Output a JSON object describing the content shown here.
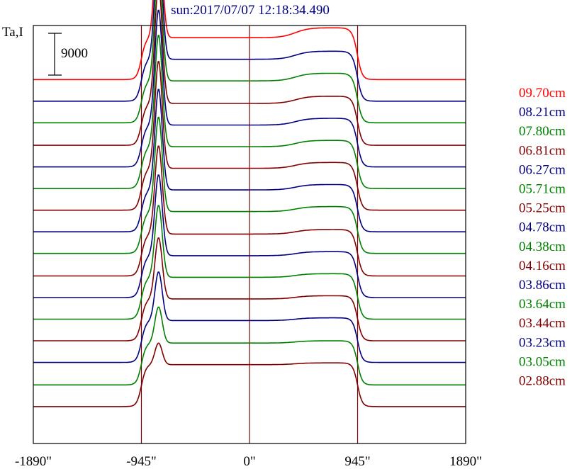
{
  "colors": {
    "red": "#ff0000",
    "blue": "#000080",
    "green": "#008000",
    "maroon": "#800000",
    "frame": "#000000",
    "title": "#000080"
  },
  "chart_data": {
    "type": "line",
    "title": "sun:2017/07/07 12:18:34.490",
    "ylabel": "Ta,I",
    "scale_bar_label": "9000",
    "scale_bar_value": 9000,
    "xlim": [
      -1890,
      1890
    ],
    "x_ticks": [
      -1890,
      -945,
      0,
      945,
      1890
    ],
    "x_tick_labels": [
      "-1890\"",
      "-945\"",
      "0\"",
      "945\"",
      "1890\""
    ],
    "x_unit": "arcsec",
    "vertical_markers": [
      -945,
      0,
      945
    ],
    "ylim": [
      -1900,
      44500
    ],
    "series": [
      {
        "name": "09.70cm",
        "color": "red",
        "baseline": 38500,
        "disk": 4650,
        "peak": 13500,
        "bright": 1100
      },
      {
        "name": "08.21cm",
        "color": "blue",
        "baseline": 36100,
        "disk": 4650,
        "peak": 13500,
        "bright": 900
      },
      {
        "name": "07.80cm",
        "color": "green",
        "baseline": 33700,
        "disk": 4650,
        "peak": 13300,
        "bright": 850
      },
      {
        "name": "06.81cm",
        "color": "maroon",
        "baseline": 31200,
        "disk": 4650,
        "peak": 13200,
        "bright": 800
      },
      {
        "name": "06.27cm",
        "color": "blue",
        "baseline": 28800,
        "disk": 4650,
        "peak": 12800,
        "bright": 750
      },
      {
        "name": "05.71cm",
        "color": "green",
        "baseline": 26400,
        "disk": 4650,
        "peak": 12400,
        "bright": 700
      },
      {
        "name": "05.25cm",
        "color": "maroon",
        "baseline": 24000,
        "disk": 4650,
        "peak": 11900,
        "bright": 650
      },
      {
        "name": "04.78cm",
        "color": "blue",
        "baseline": 21600,
        "disk": 4650,
        "peak": 11200,
        "bright": 600
      },
      {
        "name": "04.38cm",
        "color": "green",
        "baseline": 19200,
        "disk": 4650,
        "peak": 10500,
        "bright": 550
      },
      {
        "name": "04.16cm",
        "color": "maroon",
        "baseline": 16700,
        "disk": 4650,
        "peak": 9800,
        "bright": 500
      },
      {
        "name": "03.86cm",
        "color": "blue",
        "baseline": 14300,
        "disk": 4650,
        "peak": 9000,
        "bright": 450
      },
      {
        "name": "03.64cm",
        "color": "green",
        "baseline": 11900,
        "disk": 4650,
        "peak": 8000,
        "bright": 400
      },
      {
        "name": "03.44cm",
        "color": "maroon",
        "baseline": 9500,
        "disk": 4650,
        "peak": 6800,
        "bright": 350
      },
      {
        "name": "03.23cm",
        "color": "blue",
        "baseline": 7100,
        "disk": 4650,
        "peak": 5400,
        "bright": 300
      },
      {
        "name": "03.05cm",
        "color": "green",
        "baseline": 4600,
        "disk": 4650,
        "peak": 4000,
        "bright": 250
      },
      {
        "name": "02.88cm",
        "color": "maroon",
        "baseline": 2200,
        "disk": 4650,
        "peak": 2400,
        "bright": 200
      }
    ]
  }
}
